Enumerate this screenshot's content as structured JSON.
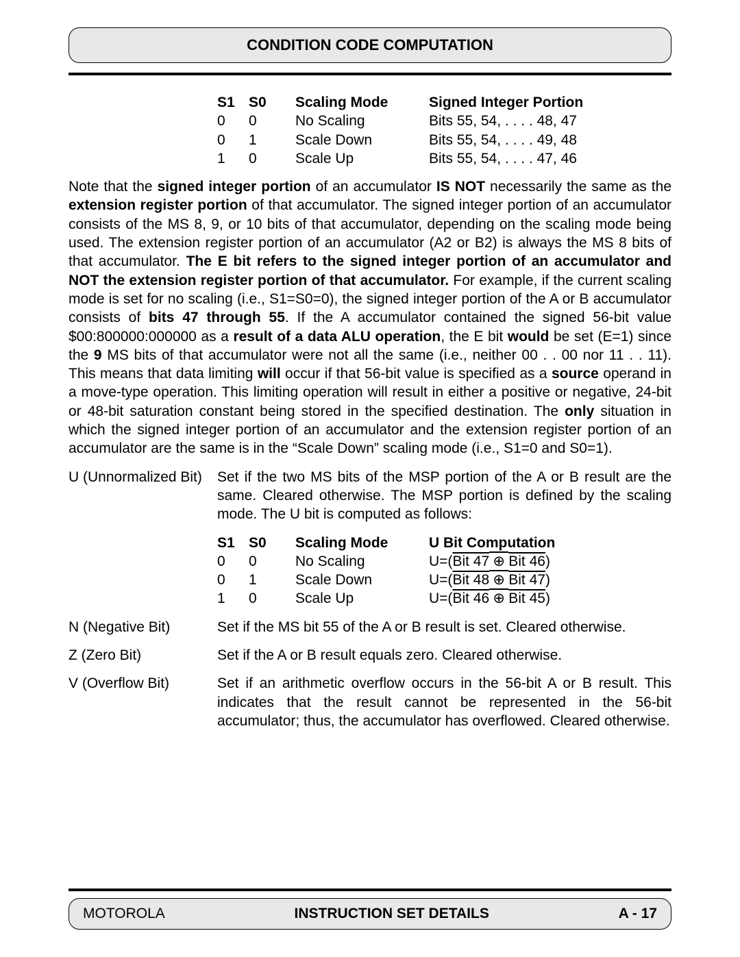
{
  "header": {
    "title": "CONDITION CODE COMPUTATION"
  },
  "table1": {
    "headers": {
      "s1": "S1",
      "s0": "S0",
      "mode": "Scaling Mode",
      "last": "Signed Integer Portion"
    },
    "rows": [
      {
        "s1": "0",
        "s0": "0",
        "mode": "No Scaling",
        "last": "Bits 55, 54, . . . . 48, 47"
      },
      {
        "s1": "0",
        "s0": "1",
        "mode": "Scale Down",
        "last": "Bits 55, 54, . . . . 49, 48"
      },
      {
        "s1": "1",
        "s0": "0",
        "mode": "Scale Up",
        "last": "Bits 55, 54, . . . . 47, 46"
      }
    ]
  },
  "note": {
    "p1a": "Note that the ",
    "p1b": "signed integer portion",
    "p1c": " of an accumulator ",
    "p1d": "IS NOT",
    "p1e": " necessarily the same as the ",
    "p1f": "extension register portion",
    "p1g": " of that accumulator. The signed integer portion of an accumulator consists of the MS 8, 9, or 10 bits of that accumulator, depending on the scaling mode being used. The extension register portion of an accumulator (A2 or B2) is always the MS 8 bits of that accumulator. ",
    "p1h": "The E bit refers to the signed integer portion of an accumulator and NOT the extension register portion of that accumulator.",
    "p1i": " For example, if the current scaling mode is set for no scaling (i.e., S1=S0=0), the signed integer portion of the A or B accumulator consists of ",
    "p1j": "bits 47 through 55",
    "p1k": ". If the A accumulator contained the signed 56-bit value $00:800000:000000 as a ",
    "p1l": "result of a data ALU operation",
    "p1m": ", the E bit ",
    "p1n": "would",
    "p1o": " be set (E=1) since the ",
    "p1p": "9",
    "p1q": " MS bits of that accumulator were not all the same (i.e., neither 00 . . 00 nor 11 . . 11). This means that data limiting ",
    "p1r": "will",
    "p1s": " occur if that 56-bit value is specified as a ",
    "p1t": "source",
    "p1u": " operand in a move-type operation. This limiting operation will result in either a positive or negative, 24-bit or 48-bit saturation constant being stored in the specified destination. The ",
    "p1v": "only",
    "p1w": " situation in which the signed integer portion of an accumulator and the extension register portion of an accumulator are the same is in the “Scale Down” scaling mode (i.e., S1=0 and S0=1)."
  },
  "bits": {
    "u": {
      "label": "U (Unnormalized Bit)",
      "desc": "Set if the two MS bits of the MSP portion of the A or B result are the same. Cleared otherwise. The MSP portion is defined by the scaling mode. The U bit is computed as follows:"
    },
    "n": {
      "label": "N (Negative Bit)",
      "desc": "Set if the MS bit 55 of the A or B result is set. Cleared otherwise."
    },
    "z": {
      "label": "Z (Zero Bit)",
      "desc": "Set if the A or B result equals zero. Cleared otherwise."
    },
    "v": {
      "label": "V (Overflow Bit)",
      "desc": "Set if an arithmetic overflow occurs in the 56-bit A or B result. This indicates that the result cannot be represented in the 56-bit accumulator; thus, the accumulator has overflowed. Cleared otherwise."
    }
  },
  "table2": {
    "headers": {
      "s1": "S1",
      "s0": "S0",
      "mode": "Scaling Mode",
      "last": "U Bit Computation"
    },
    "rows": [
      {
        "s1": "0",
        "s0": "0",
        "mode": "No Scaling",
        "prefix": "U=(",
        "a": "Bit 47",
        "x": " ⊕ ",
        "b": "Bit 46",
        "suffix": ")"
      },
      {
        "s1": "0",
        "s0": "1",
        "mode": "Scale Down",
        "prefix": "U=(",
        "a": "Bit 48",
        "x": " ⊕ ",
        "b": "Bit 47",
        "suffix": ")"
      },
      {
        "s1": "1",
        "s0": "0",
        "mode": "Scale Up",
        "prefix": "U=(",
        "a": "Bit 46",
        "x": " ⊕ ",
        "b": "Bit 45",
        "suffix": ")"
      }
    ]
  },
  "footer": {
    "left": "MOTOROLA",
    "center": "INSTRUCTION SET DETAILS",
    "right": "A - 17"
  }
}
